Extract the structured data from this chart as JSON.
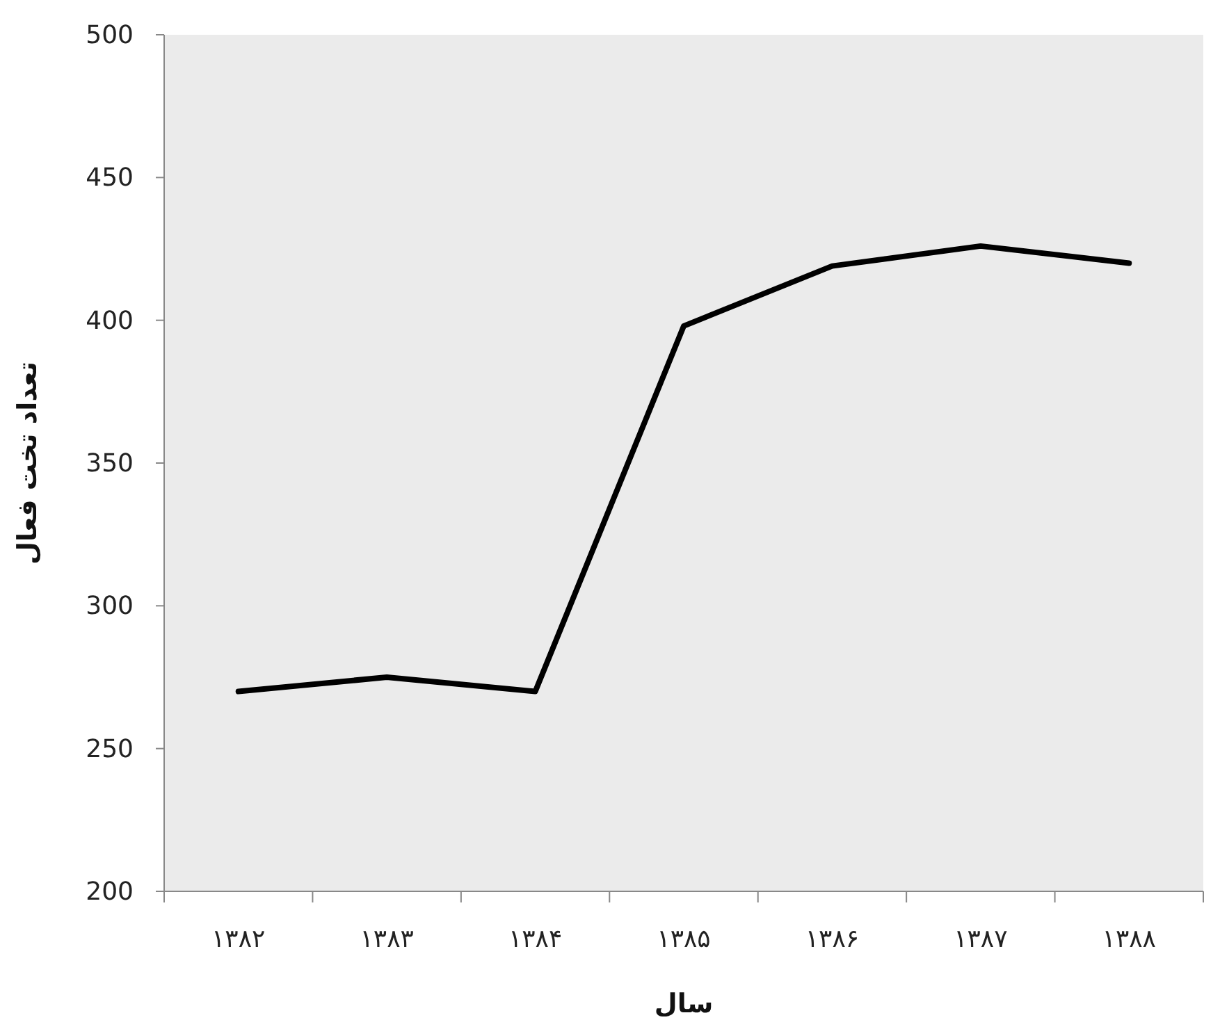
{
  "chart_data": {
    "type": "line",
    "xlabel": "سال",
    "ylabel": "تعداد تخت فعال",
    "categories": [
      "۱۳۸۲",
      "۱۳۸۳",
      "۱۳۸۴",
      "۱۳۸۵",
      "۱۳۸۶",
      "۱۳۸۷",
      "۱۳۸۸"
    ],
    "series": [
      {
        "color": "#000000",
        "values": [
          270,
          275,
          270,
          398,
          419,
          426,
          420
        ]
      }
    ],
    "ylim": [
      200,
      500
    ],
    "yticks": [
      200,
      250,
      300,
      350,
      400,
      450,
      500
    ],
    "grid": false,
    "marker": "none",
    "line_style": "solid"
  }
}
